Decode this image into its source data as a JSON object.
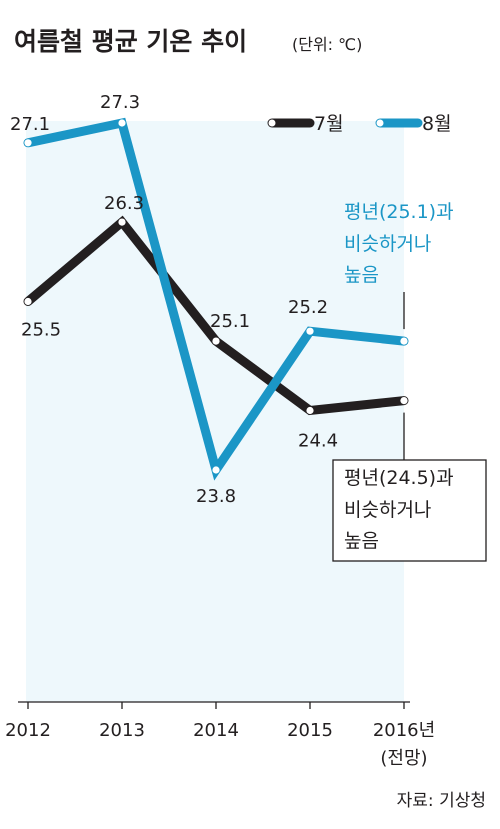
{
  "title": "여름철 평균 기온 추이",
  "unit": "(단위: ℃)",
  "source": "자료: 기상청",
  "colors": {
    "july": "#231f20",
    "august": "#1b96c6",
    "plot_bg": "#eef8fc"
  },
  "chart_data": {
    "type": "line",
    "title": "여름철 평균 기온 추이",
    "unit": "(단위: ℃)",
    "categories": [
      "2012",
      "2013",
      "2014",
      "2015",
      "2016년"
    ],
    "category_sublabels": [
      "",
      "",
      "",
      "",
      "(전망)"
    ],
    "series": [
      {
        "name": "7월",
        "values": [
          25.5,
          26.3,
          25.1,
          24.4,
          24.5
        ],
        "labels": [
          "25.5",
          "26.3",
          "25.1",
          "24.4",
          ""
        ]
      },
      {
        "name": "8월",
        "values": [
          27.1,
          27.3,
          23.8,
          25.2,
          25.1
        ],
        "labels": [
          "27.1",
          "27.3",
          "23.8",
          "25.2",
          ""
        ]
      }
    ],
    "legend_position": "top-right",
    "grid": false,
    "annotations": [
      {
        "series": "8월",
        "lines": [
          "평년(25.1)과",
          "비슷하거나",
          "높음"
        ]
      },
      {
        "series": "7월",
        "lines": [
          "평년(24.5)과",
          "비슷하거나",
          "높음"
        ]
      }
    ]
  }
}
